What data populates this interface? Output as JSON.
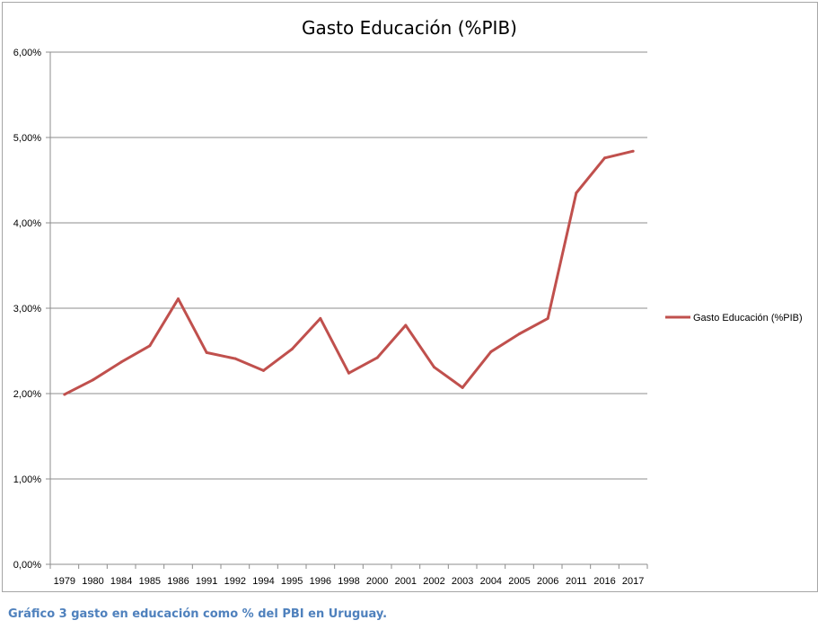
{
  "chart_data": {
    "type": "line",
    "title": "Gasto Educación (%PIB)",
    "xlabel": "",
    "ylabel": "",
    "categories": [
      "1979",
      "1980",
      "1984",
      "1985",
      "1986",
      "1991",
      "1992",
      "1994",
      "1995",
      "1996",
      "1998",
      "2000",
      "2001",
      "2002",
      "2003",
      "2004",
      "2005",
      "2006",
      "2011",
      "2016",
      "2017"
    ],
    "series": [
      {
        "name": "Gasto Educación (%PIB)",
        "color": "#c0504d",
        "values": [
          1.99,
          2.16,
          2.37,
          2.56,
          3.11,
          2.48,
          2.41,
          2.27,
          2.52,
          2.88,
          2.24,
          2.42,
          2.8,
          2.31,
          2.07,
          2.49,
          2.7,
          2.88,
          4.35,
          4.76,
          4.84
        ]
      }
    ],
    "ylim": [
      0,
      6
    ],
    "yticks": [
      "0,00%",
      "1,00%",
      "2,00%",
      "3,00%",
      "4,00%",
      "5,00%",
      "6,00%"
    ],
    "grid": true,
    "legend": "right"
  },
  "caption": "Gráfico 3 gasto en educación como % del PBI en Uruguay."
}
